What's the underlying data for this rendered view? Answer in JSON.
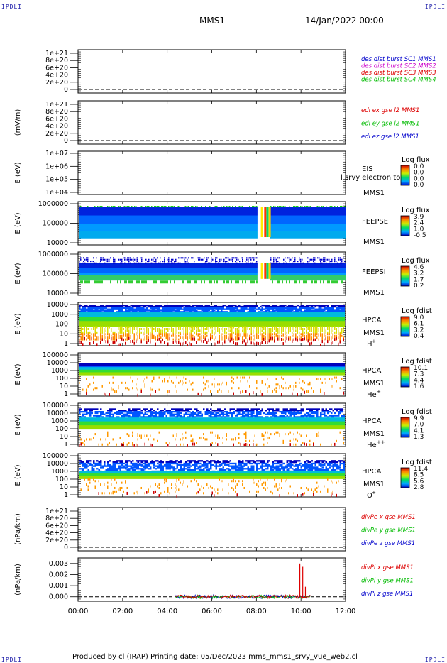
{
  "header": {
    "corner_left_top": "IPDLI",
    "corner_right_top": "IPDLI",
    "spacecraft": "MMS1",
    "date": "14/Jan/2022 00:00",
    "corner_left_bottom": "IPDLI",
    "corner_right_bottom": "IPDLI"
  },
  "footer": {
    "text": "Produced by cl (IRAP)   Printing date: 05/Dec/2023   mms_mms1_srvy_vue_web2.cl"
  },
  "time_axis": {
    "ticks": [
      "00:00",
      "02:00",
      "04:00",
      "06:00",
      "08:00",
      "10:00",
      "12:00"
    ]
  },
  "chart_data": [
    {
      "type": "line",
      "id": "panel1",
      "ylabel": "",
      "ticks": [
        "1e+21",
        "8e+20",
        "6e+20",
        "4e+20",
        "2e+20",
        "0"
      ],
      "legend": [
        {
          "text": "des dist burst SC1 MMS1",
          "color": "#0000cc"
        },
        {
          "text": "des dist burst SC2 MMS2",
          "color": "#cc00cc"
        },
        {
          "text": "des dist burst SC3 MMS3",
          "color": "#dd0000"
        },
        {
          "text": "des dist burst SC4 MMS4",
          "color": "#00bb00"
        }
      ],
      "series": []
    },
    {
      "type": "line",
      "id": "panel2",
      "ylabel": "(mV/m)",
      "ticks": [
        "1e+21",
        "8e+20",
        "6e+20",
        "4e+20",
        "2e+20",
        "0"
      ],
      "legend": [
        {
          "text": "edi ex gse l2 MMS1",
          "color": "#dd0000"
        },
        {
          "text": "edi ey gse l2 MMS1",
          "color": "#00bb00"
        },
        {
          "text": "edi ez gse l2 MMS1",
          "color": "#0000cc"
        }
      ],
      "series": []
    },
    {
      "type": "heatmap",
      "id": "panel3",
      "ylabel": "E (eV)",
      "ticks": [
        "1e+07",
        "1e+06",
        "1e+05",
        "1e+04"
      ],
      "instrument": "EIS",
      "overlap_text": "l srvy electron to",
      "spacecraft": "MMS1",
      "colorbar_title": "Log flux",
      "colorbar_ticks": [
        "0.0",
        "0.0",
        "0.0",
        "0.0"
      ],
      "data_coverage": "none"
    },
    {
      "type": "heatmap",
      "id": "panel4",
      "ylabel": "E (eV)",
      "ticks": [
        "1000000",
        "100000",
        "10000"
      ],
      "instrument": "FEEPSE",
      "spacecraft": "MMS1",
      "colorbar_title": "Log flux",
      "colorbar_ticks": [
        "3.9",
        "2.4",
        "1.0",
        "-0.5"
      ]
    },
    {
      "type": "heatmap",
      "id": "panel5",
      "ylabel": "E (eV)",
      "ticks": [
        "1000000",
        "100000",
        "10000"
      ],
      "instrument": "FEEPSI",
      "spacecraft": "MMS1",
      "colorbar_title": "Log flux",
      "colorbar_ticks": [
        "4.6",
        "3.2",
        "1.7",
        "0.2"
      ]
    },
    {
      "type": "heatmap",
      "id": "panel6",
      "ylabel": "E (eV)",
      "ticks": [
        "10000",
        "1000",
        "100",
        "10",
        "1"
      ],
      "instrument": "HPCA",
      "spacecraft": "MMS1",
      "species": "H",
      "species_charge": "+",
      "colorbar_title": "Log fdist",
      "colorbar_ticks": [
        "9.0",
        "6.1",
        "3.2",
        "0.4"
      ]
    },
    {
      "type": "heatmap",
      "id": "panel7",
      "ylabel": "E (eV)",
      "ticks": [
        "100000",
        "10000",
        "1000",
        "100",
        "10",
        "1"
      ],
      "instrument": "HPCA",
      "spacecraft": "MMS1",
      "species": "He",
      "species_charge": "+",
      "colorbar_title": "Log fdist",
      "colorbar_ticks": [
        "10.1",
        "7.3",
        "4.4",
        "1.6"
      ]
    },
    {
      "type": "heatmap",
      "id": "panel8",
      "ylabel": "E (eV)",
      "ticks": [
        "100000",
        "10000",
        "1000",
        "100",
        "10",
        "1"
      ],
      "instrument": "HPCA",
      "spacecraft": "MMS1",
      "species": "He",
      "species_charge": "++",
      "colorbar_title": "Log fdist",
      "colorbar_ticks": [
        "9.9",
        "7.0",
        "4.1",
        "1.3"
      ]
    },
    {
      "type": "heatmap",
      "id": "panel9",
      "ylabel": "E (eV)",
      "ticks": [
        "100000",
        "10000",
        "1000",
        "100",
        "10",
        "1"
      ],
      "instrument": "HPCA",
      "spacecraft": "MMS1",
      "species": "O",
      "species_charge": "+",
      "colorbar_title": "Log fdist",
      "colorbar_ticks": [
        "11.4",
        "8.5",
        "5.6",
        "2.8"
      ]
    },
    {
      "type": "line",
      "id": "panel10",
      "ylabel": "(nPa/km)",
      "ticks": [
        "1e+21",
        "8e+20",
        "6e+20",
        "4e+20",
        "2e+20",
        "0"
      ],
      "legend": [
        {
          "text": "divPe x gse MMS1",
          "color": "#dd0000"
        },
        {
          "text": "divPe y gse MMS1",
          "color": "#00bb00"
        },
        {
          "text": "divPe z gse MMS1",
          "color": "#0000cc"
        }
      ],
      "series": []
    },
    {
      "type": "line",
      "id": "panel11",
      "ylabel": "(nPa/km)",
      "ticks": [
        "0.003",
        "0.002",
        "0.001",
        "0.000"
      ],
      "ylim": [
        -0.0004,
        0.0035
      ],
      "legend": [
        {
          "text": "divPi x gse MMS1",
          "color": "#dd0000"
        },
        {
          "text": "divPi y gse MMS1",
          "color": "#00bb00"
        },
        {
          "text": "divPi z gse MMS1",
          "color": "#0000cc"
        }
      ],
      "data_range_hours": [
        4.4,
        10.45
      ],
      "spikes": [
        {
          "t": 9.95,
          "value": 0.003,
          "color": "#dd0000"
        },
        {
          "t": 10.08,
          "value": 0.0027,
          "color": "#dd0000"
        },
        {
          "t": 10.2,
          "value": 0.0009,
          "color": "#dd0000"
        }
      ]
    }
  ]
}
